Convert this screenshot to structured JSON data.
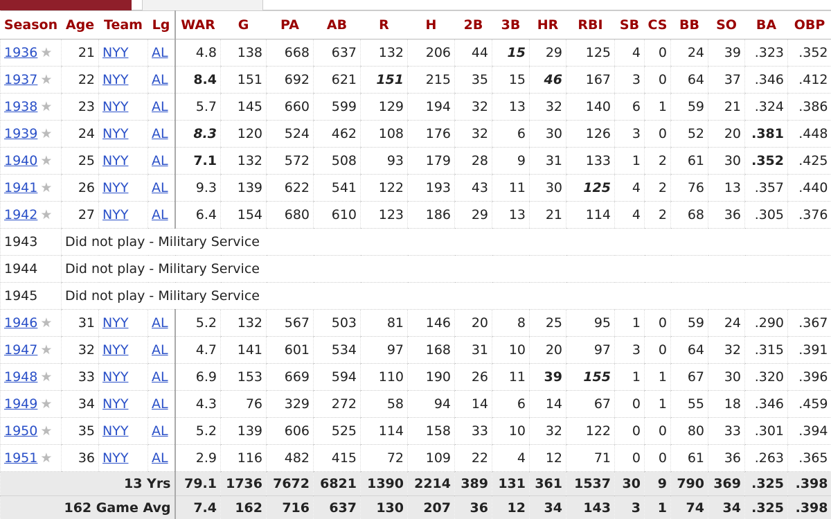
{
  "table": {
    "columns": [
      "Season",
      "Age",
      "Team",
      "Lg",
      "WAR",
      "G",
      "PA",
      "AB",
      "R",
      "H",
      "2B",
      "3B",
      "HR",
      "RBI",
      "SB",
      "CS",
      "BB",
      "SO",
      "BA",
      "OBP"
    ],
    "rows": [
      {
        "cells": [
          "1936",
          "21",
          "NYY",
          "AL",
          "4.8",
          "138",
          "668",
          "637",
          "132",
          "206",
          "44",
          "15",
          "29",
          "125",
          "4",
          "0",
          "24",
          "39",
          ".323",
          ".352"
        ],
        "strong": [
          11
        ],
        "em": [
          11
        ]
      },
      {
        "cells": [
          "1937",
          "22",
          "NYY",
          "AL",
          "8.4",
          "151",
          "692",
          "621",
          "151",
          "215",
          "35",
          "15",
          "46",
          "167",
          "3",
          "0",
          "64",
          "37",
          ".346",
          ".412"
        ],
        "strong": [
          4,
          8,
          12
        ],
        "em": [
          8,
          12
        ]
      },
      {
        "cells": [
          "1938",
          "23",
          "NYY",
          "AL",
          "5.7",
          "145",
          "660",
          "599",
          "129",
          "194",
          "32",
          "13",
          "32",
          "140",
          "6",
          "1",
          "59",
          "21",
          ".324",
          ".386"
        ]
      },
      {
        "cells": [
          "1939",
          "24",
          "NYY",
          "AL",
          "8.3",
          "120",
          "524",
          "462",
          "108",
          "176",
          "32",
          "6",
          "30",
          "126",
          "3",
          "0",
          "52",
          "20",
          ".381",
          ".448"
        ],
        "strong": [
          4,
          18
        ],
        "em": [
          4
        ]
      },
      {
        "cells": [
          "1940",
          "25",
          "NYY",
          "AL",
          "7.1",
          "132",
          "572",
          "508",
          "93",
          "179",
          "28",
          "9",
          "31",
          "133",
          "1",
          "2",
          "61",
          "30",
          ".352",
          ".425"
        ],
        "strong": [
          4,
          18
        ]
      },
      {
        "cells": [
          "1941",
          "26",
          "NYY",
          "AL",
          "9.3",
          "139",
          "622",
          "541",
          "122",
          "193",
          "43",
          "11",
          "30",
          "125",
          "4",
          "2",
          "76",
          "13",
          ".357",
          ".440"
        ],
        "strong": [
          13
        ],
        "em": [
          13
        ]
      },
      {
        "cells": [
          "1942",
          "27",
          "NYY",
          "AL",
          "6.4",
          "154",
          "680",
          "610",
          "123",
          "186",
          "29",
          "13",
          "21",
          "114",
          "4",
          "2",
          "68",
          "36",
          ".305",
          ".376"
        ]
      },
      {
        "cells": [
          "1943"
        ],
        "note": "Did not play - Military Service"
      },
      {
        "cells": [
          "1944"
        ],
        "note": "Did not play - Military Service"
      },
      {
        "cells": [
          "1945"
        ],
        "note": "Did not play - Military Service"
      },
      {
        "cells": [
          "1946",
          "31",
          "NYY",
          "AL",
          "5.2",
          "132",
          "567",
          "503",
          "81",
          "146",
          "20",
          "8",
          "25",
          "95",
          "1",
          "0",
          "59",
          "24",
          ".290",
          ".367"
        ]
      },
      {
        "cells": [
          "1947",
          "32",
          "NYY",
          "AL",
          "4.7",
          "141",
          "601",
          "534",
          "97",
          "168",
          "31",
          "10",
          "20",
          "97",
          "3",
          "0",
          "64",
          "32",
          ".315",
          ".391"
        ]
      },
      {
        "cells": [
          "1948",
          "33",
          "NYY",
          "AL",
          "6.9",
          "153",
          "669",
          "594",
          "110",
          "190",
          "26",
          "11",
          "39",
          "155",
          "1",
          "1",
          "67",
          "30",
          ".320",
          ".396"
        ],
        "strong": [
          12,
          13
        ],
        "em": [
          13
        ]
      },
      {
        "cells": [
          "1949",
          "34",
          "NYY",
          "AL",
          "4.3",
          "76",
          "329",
          "272",
          "58",
          "94",
          "14",
          "6",
          "14",
          "67",
          "0",
          "1",
          "55",
          "18",
          ".346",
          ".459"
        ]
      },
      {
        "cells": [
          "1950",
          "35",
          "NYY",
          "AL",
          "5.2",
          "139",
          "606",
          "525",
          "114",
          "158",
          "33",
          "10",
          "32",
          "122",
          "0",
          "0",
          "80",
          "33",
          ".301",
          ".394"
        ]
      },
      {
        "cells": [
          "1951",
          "36",
          "NYY",
          "AL",
          "2.9",
          "116",
          "482",
          "415",
          "72",
          "109",
          "22",
          "4",
          "12",
          "71",
          "0",
          "0",
          "61",
          "36",
          ".263",
          ".365"
        ]
      }
    ],
    "footer": [
      {
        "label": "13 Yrs",
        "cells": [
          "79.1",
          "1736",
          "7672",
          "6821",
          "1390",
          "2214",
          "389",
          "131",
          "361",
          "1537",
          "30",
          "9",
          "790",
          "369",
          ".325",
          ".398"
        ]
      },
      {
        "label": "162 Game Avg",
        "cells": [
          "7.4",
          "162",
          "716",
          "637",
          "130",
          "207",
          "36",
          "12",
          "34",
          "143",
          "3",
          "1",
          "74",
          "34",
          ".325",
          ".398"
        ]
      }
    ]
  }
}
